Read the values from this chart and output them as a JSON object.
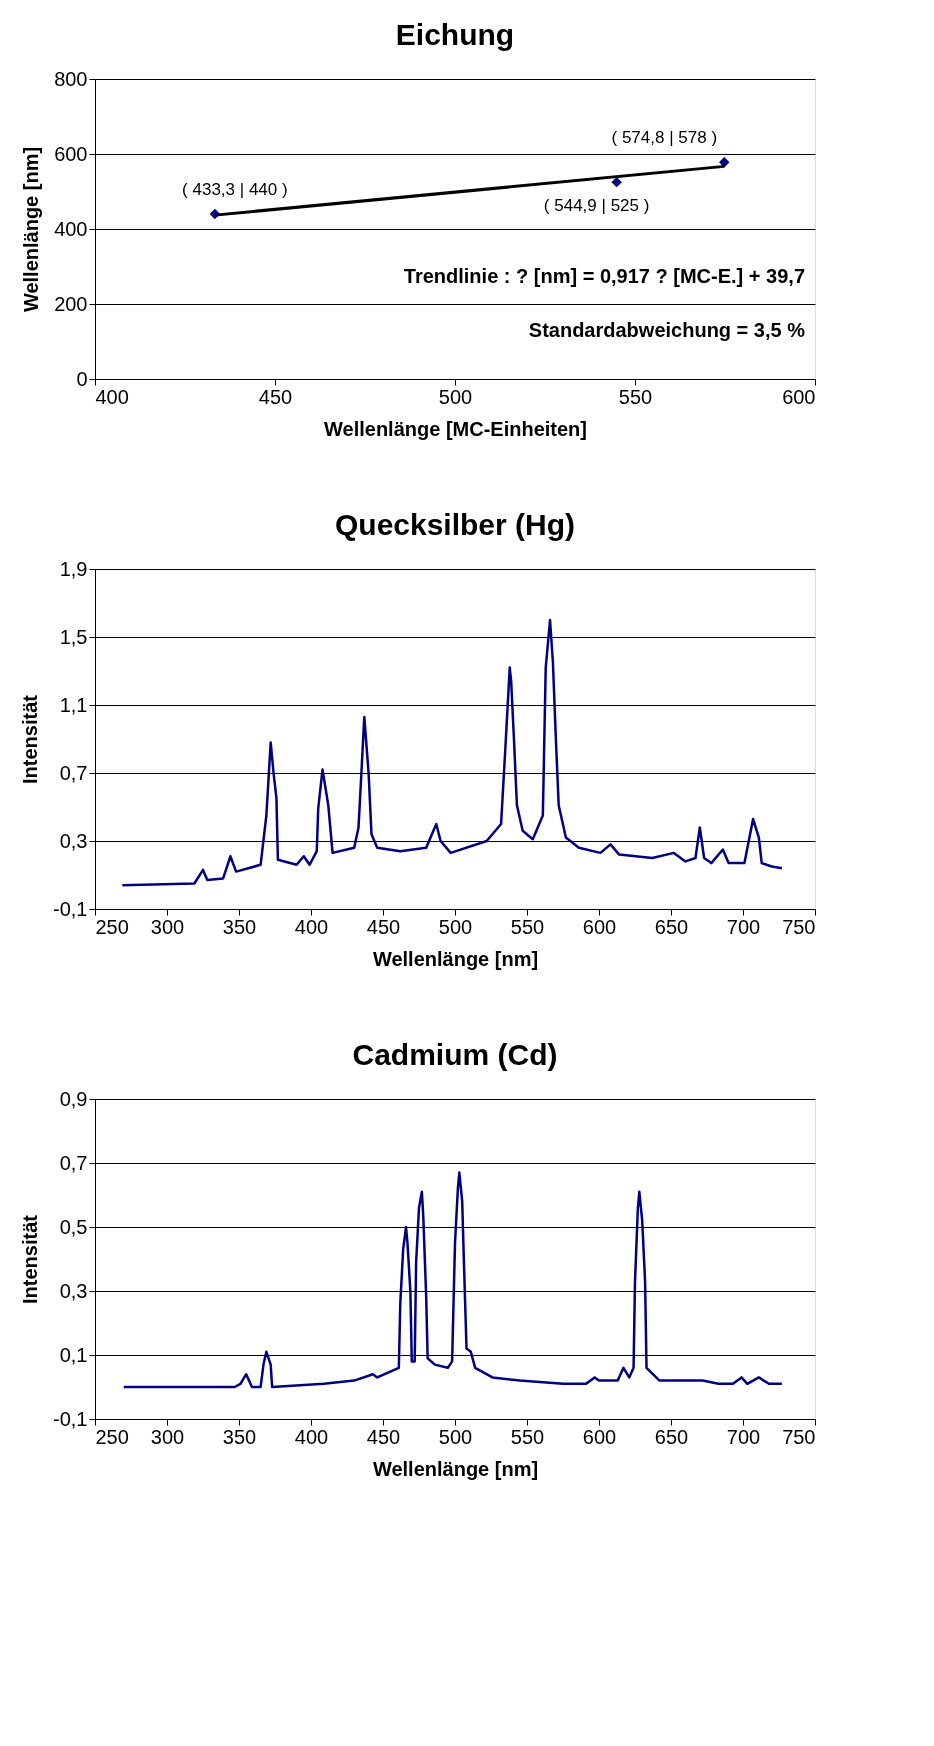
{
  "chart_data": [
    {
      "type": "scatter",
      "title": "Eichung",
      "xlabel": "Wellenlänge [MC-Einheiten]",
      "ylabel": "Wellenlänge [nm]",
      "xlim": [
        400,
        600
      ],
      "xticks": [
        400,
        450,
        500,
        550,
        600
      ],
      "ylim": [
        0,
        800
      ],
      "yticks": [
        0,
        200,
        400,
        600,
        800
      ],
      "grid": "y",
      "marker": "diamond",
      "series": [
        {
          "type": "scatter",
          "color": "#000080",
          "x": [
            433.3,
            544.9,
            574.8
          ],
          "values": [
            440,
            525,
            578
          ]
        },
        {
          "type": "line",
          "color": "#000000",
          "marker": "none",
          "x": [
            433.3,
            574.8
          ],
          "values": [
            437,
            567
          ]
        }
      ],
      "annotations": [
        {
          "text": "( 433,3 | 440 )",
          "x": 433.3,
          "y": 440
        },
        {
          "text": "( 544,9 | 525 )",
          "x": 544.9,
          "y": 525
        },
        {
          "text": "( 574,8 | 578 )",
          "x": 574.8,
          "y": 578
        },
        "Trendlinie :  ? [nm] = 0,917 ? [MC-E.] + 39,7",
        "Standardabweichung = 3,5 %"
      ]
    },
    {
      "type": "line",
      "title": "Quecksilber (Hg)",
      "xlabel": "Wellenlänge [nm]",
      "ylabel": "Intensität",
      "xlim": [
        250,
        750
      ],
      "xticks": [
        250,
        300,
        350,
        400,
        450,
        500,
        550,
        600,
        650,
        700,
        750
      ],
      "ylim": [
        -0.1,
        1.9
      ],
      "yticks": [
        {
          "value": -0.1,
          "label": "-0,1"
        },
        {
          "value": 0.3,
          "label": "0,3"
        },
        {
          "value": 0.7,
          "label": "0,7"
        },
        {
          "value": 1.1,
          "label": "1,1"
        },
        {
          "value": 1.5,
          "label": "1,5"
        },
        {
          "value": 1.9,
          "label": "1,9"
        }
      ],
      "grid": "y",
      "series": [
        {
          "color": "#000080",
          "x": [
            269,
            319,
            325,
            328,
            339,
            344,
            348,
            365,
            369,
            372,
            374,
            376,
            377,
            390,
            395,
            399,
            404,
            405,
            408,
            412,
            415,
            430,
            433,
            435,
            437,
            440,
            442,
            446,
            462,
            480,
            487,
            490,
            497,
            522,
            532,
            535,
            538,
            539,
            541,
            543,
            547,
            554,
            561,
            563,
            566,
            568,
            570,
            572,
            577,
            586,
            601,
            608,
            614,
            637,
            652,
            660,
            667,
            670,
            673,
            678,
            686,
            690,
            701,
            707,
            711,
            713,
            720,
            727
          ],
          "values": [
            0.04,
            0.05,
            0.13,
            0.07,
            0.08,
            0.21,
            0.12,
            0.16,
            0.45,
            0.88,
            0.7,
            0.55,
            0.19,
            0.16,
            0.21,
            0.16,
            0.24,
            0.49,
            0.72,
            0.51,
            0.23,
            0.26,
            0.38,
            0.7,
            1.03,
            0.7,
            0.34,
            0.26,
            0.24,
            0.26,
            0.4,
            0.3,
            0.23,
            0.3,
            0.4,
            0.85,
            1.32,
            1.24,
            0.89,
            0.51,
            0.36,
            0.31,
            0.45,
            1.32,
            1.6,
            1.35,
            0.91,
            0.51,
            0.32,
            0.26,
            0.23,
            0.28,
            0.22,
            0.2,
            0.23,
            0.18,
            0.2,
            0.38,
            0.2,
            0.17,
            0.25,
            0.17,
            0.17,
            0.43,
            0.32,
            0.17,
            0.15,
            0.14
          ]
        }
      ]
    },
    {
      "type": "line",
      "title": "Cadmium (Cd)",
      "xlabel": "Wellenlänge [nm]",
      "ylabel": "Intensität",
      "xlim": [
        250,
        750
      ],
      "xticks": [
        250,
        300,
        350,
        400,
        450,
        500,
        550,
        600,
        650,
        700,
        750
      ],
      "ylim": [
        -0.1,
        0.9
      ],
      "yticks": [
        {
          "value": -0.1,
          "label": "-0,1"
        },
        {
          "value": 0.1,
          "label": "0,1"
        },
        {
          "value": 0.3,
          "label": "0,3"
        },
        {
          "value": 0.5,
          "label": "0,5"
        },
        {
          "value": 0.7,
          "label": "0,7"
        },
        {
          "value": 0.9,
          "label": "0,9"
        }
      ],
      "grid": "y",
      "series": [
        {
          "color": "#000080",
          "x": [
            270,
            347,
            351,
            355,
            359,
            365,
            367,
            369,
            372,
            373,
            409,
            430,
            443,
            446,
            461,
            462,
            464,
            466,
            467,
            469,
            470,
            472,
            473,
            475,
            477,
            478,
            480,
            481,
            486,
            495,
            498,
            500,
            502,
            503,
            505,
            506,
            508,
            511,
            514,
            526,
            545,
            575,
            591,
            597,
            600,
            613,
            617,
            621,
            624,
            625,
            627,
            628,
            630,
            632,
            633,
            642,
            672,
            683,
            693,
            699,
            703,
            711,
            718,
            727
          ],
          "values": [
            0.0,
            0.0,
            0.01,
            0.04,
            0.0,
            0.0,
            0.07,
            0.11,
            0.07,
            0.0,
            0.01,
            0.02,
            0.04,
            0.03,
            0.06,
            0.26,
            0.43,
            0.5,
            0.45,
            0.3,
            0.08,
            0.08,
            0.39,
            0.56,
            0.61,
            0.53,
            0.28,
            0.09,
            0.07,
            0.06,
            0.08,
            0.45,
            0.62,
            0.67,
            0.58,
            0.42,
            0.12,
            0.11,
            0.06,
            0.03,
            0.02,
            0.01,
            0.01,
            0.03,
            0.02,
            0.02,
            0.06,
            0.03,
            0.06,
            0.33,
            0.56,
            0.61,
            0.52,
            0.33,
            0.06,
            0.02,
            0.02,
            0.01,
            0.01,
            0.03,
            0.01,
            0.03,
            0.01,
            0.01
          ]
        }
      ]
    }
  ]
}
